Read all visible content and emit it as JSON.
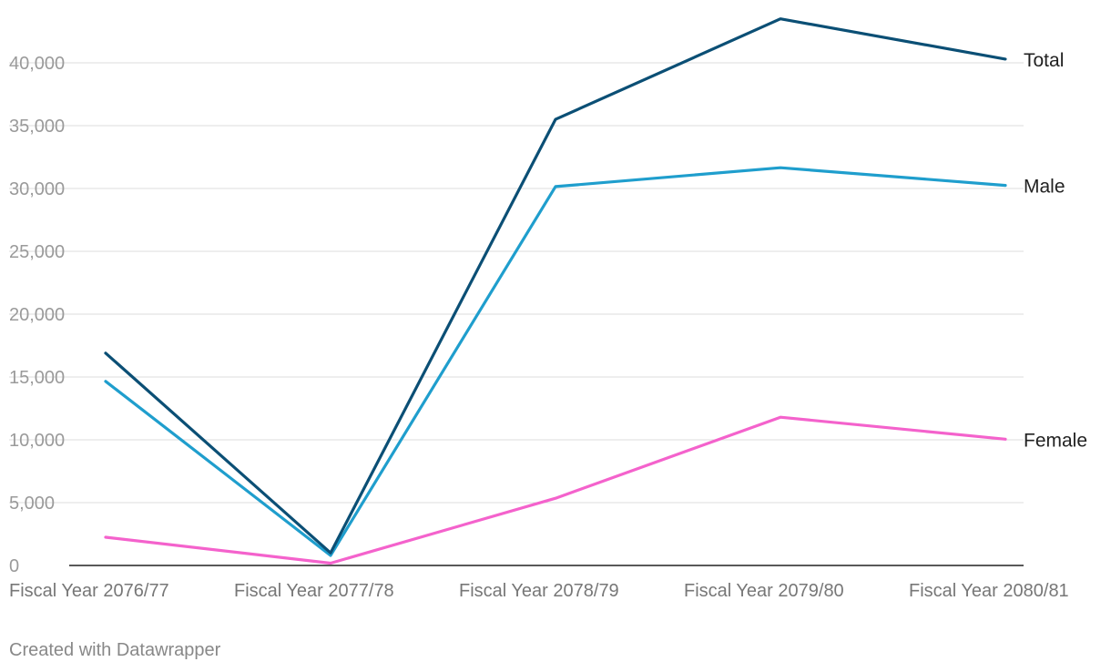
{
  "chart_data": {
    "type": "line",
    "title": "",
    "xlabel": "",
    "ylabel": "",
    "categories": [
      "Fiscal Year 2076/77",
      "Fiscal Year 2077/78",
      "Fiscal Year 2078/79",
      "Fiscal Year 2079/80",
      "Fiscal Year 2080/81"
    ],
    "ylim": [
      0,
      40000
    ],
    "yticks": [
      0,
      5000,
      10000,
      15000,
      20000,
      25000,
      30000,
      35000,
      40000
    ],
    "ytick_labels": [
      "0",
      "5,000",
      "10,000",
      "15,000",
      "20,000",
      "25,000",
      "30,000",
      "35,000",
      "40,000"
    ],
    "grid": true,
    "series": [
      {
        "name": "Total",
        "color": "#0b4f75",
        "values": [
          16900,
          1000,
          35500,
          43500,
          40300
        ]
      },
      {
        "name": "Male",
        "color": "#1f9ecd",
        "values": [
          14650,
          800,
          30150,
          31650,
          30250
        ]
      },
      {
        "name": "Female",
        "color": "#f462cc",
        "values": [
          2250,
          180,
          5350,
          11800,
          10050
        ]
      }
    ]
  },
  "footer": {
    "credit": "Created with Datawrapper"
  },
  "colors": {
    "grid": "#dddddd",
    "axis": "#222222",
    "tick_label": "#9a9a9a",
    "category_label": "#777777",
    "series_label": "#222222"
  }
}
